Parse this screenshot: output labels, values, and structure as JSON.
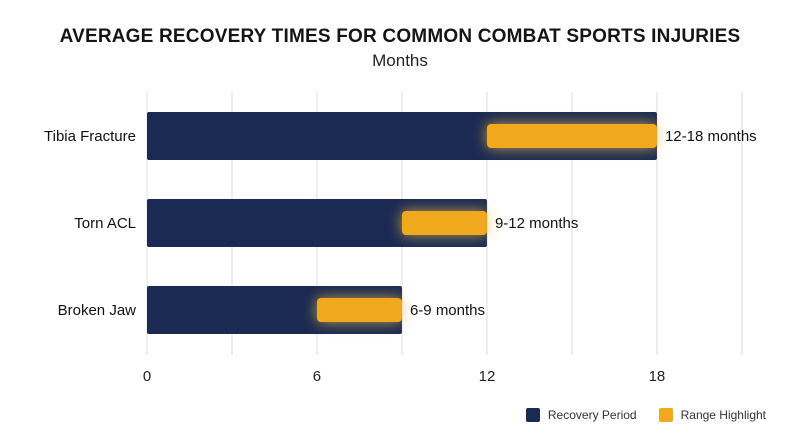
{
  "chart_data": {
    "type": "bar",
    "title": "AVERAGE RECOVERY TIMES FOR COMMON COMBAT SPORTS INJURIES",
    "subtitle": "Months",
    "categories": [
      "Tibia Fracture",
      "Torn ACL",
      "Broken Jaw"
    ],
    "series": [
      {
        "name": "Recovery Period",
        "values": [
          18,
          12,
          9
        ]
      },
      {
        "name": "Range Highlight",
        "ranges": [
          [
            12,
            18
          ],
          [
            9,
            12
          ],
          [
            6,
            9
          ]
        ]
      }
    ],
    "data_labels": [
      "12-18 months",
      "9-12 months",
      "6-9 months"
    ],
    "x_ticks": [
      0,
      6,
      12,
      18
    ],
    "xlim": [
      0,
      21
    ],
    "grid": true,
    "legend_position": "bottom-right",
    "colors": {
      "recovery": "#1b2a52",
      "highlight": "#f0a81c",
      "grid": "#dcdcdc",
      "glow": "#f6c34a"
    }
  }
}
